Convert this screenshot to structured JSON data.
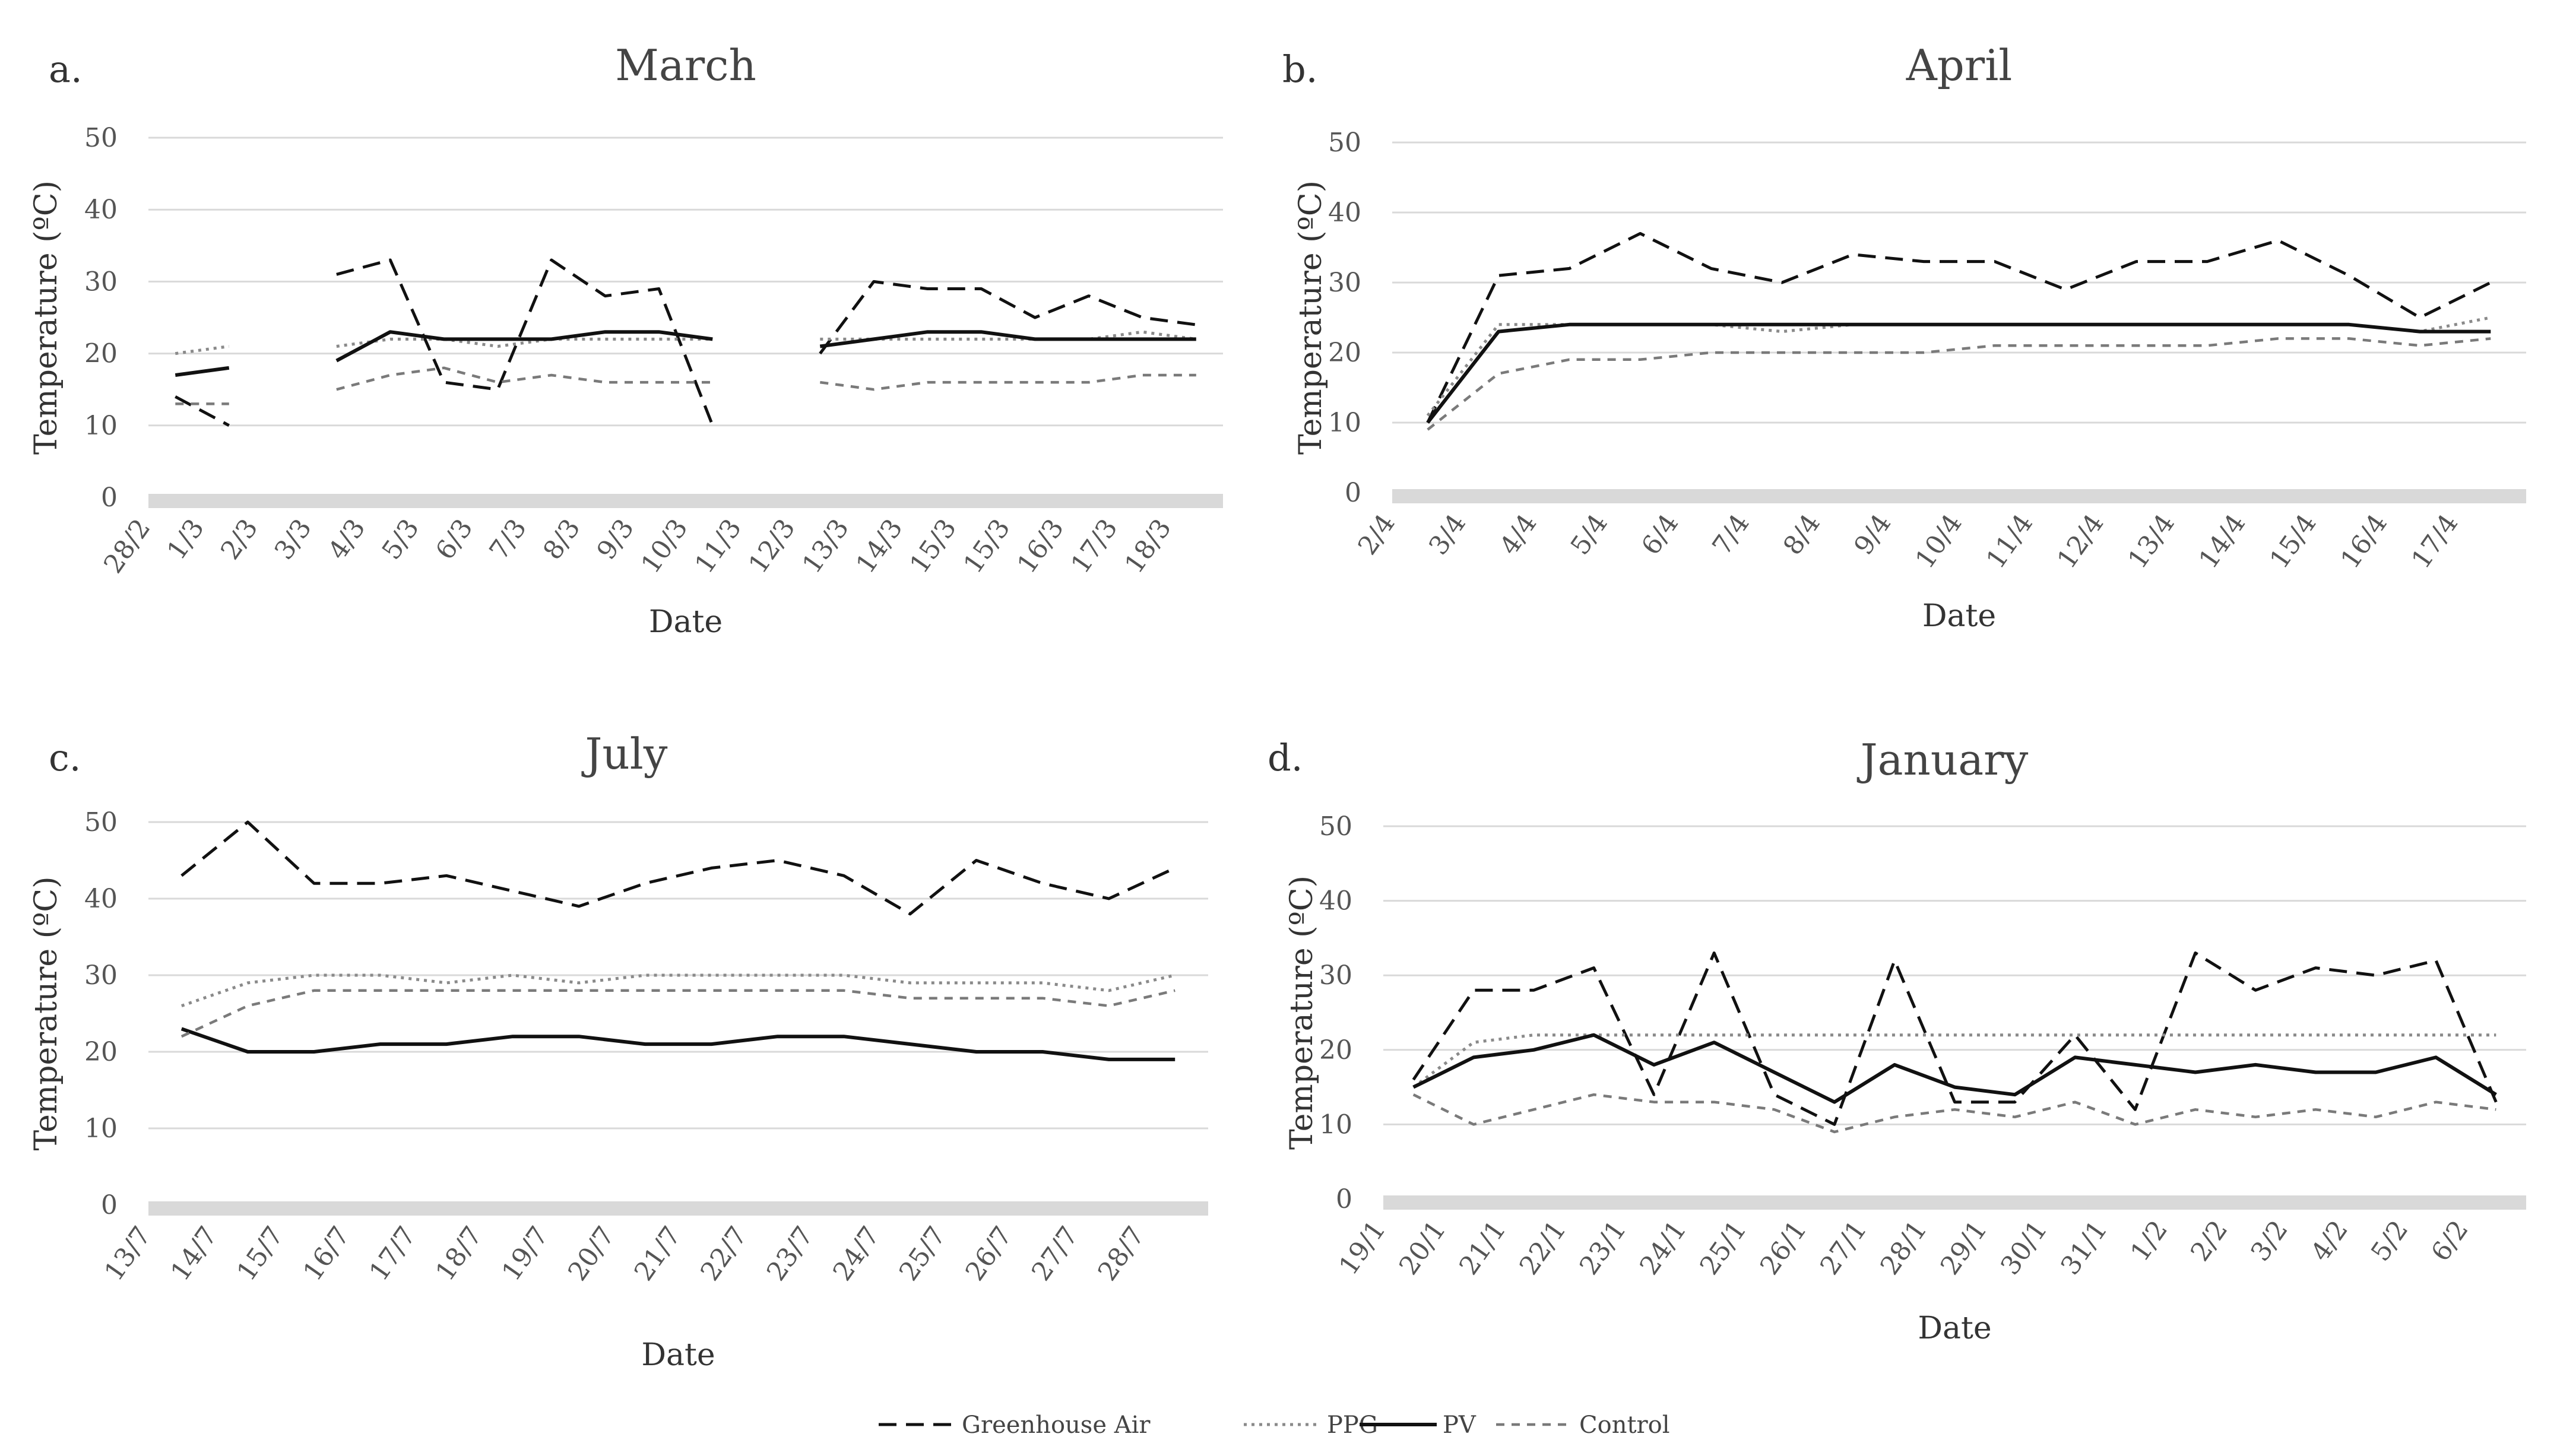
{
  "legend": [
    {
      "name": "Greenhouse Air",
      "style": "longdash"
    },
    {
      "name": "PPG",
      "style": "dotted"
    },
    {
      "name": "PV",
      "style": "solid"
    },
    {
      "name": "Control",
      "style": "shortdash"
    }
  ],
  "chart_data": [
    {
      "type": "line",
      "letter": "a.",
      "title": "March",
      "xlabel": "Date",
      "ylabel": "Temperature (ºC)",
      "ylim": [
        0,
        50
      ],
      "yticks": [
        0,
        10,
        20,
        30,
        40,
        50
      ],
      "categories": [
        "28/2",
        "1/3",
        "2/3",
        "3/3",
        "4/3",
        "5/3",
        "6/3",
        "7/3",
        "8/3",
        "9/3",
        "10/3",
        "11/3",
        "12/3",
        "13/3",
        "14/3",
        "15/3",
        "15/3",
        "16/3",
        "17/3",
        "18/3"
      ],
      "series": [
        {
          "name": "Greenhouse Air",
          "values": [
            14,
            10,
            null,
            31,
            33,
            16,
            15,
            33,
            28,
            29,
            10,
            null,
            20,
            30,
            29,
            29,
            25,
            28,
            25,
            24
          ]
        },
        {
          "name": "PPG",
          "values": [
            20,
            21,
            null,
            21,
            22,
            22,
            21,
            22,
            22,
            22,
            22,
            null,
            22,
            22,
            22,
            22,
            22,
            22,
            23,
            22
          ]
        },
        {
          "name": "PV",
          "values": [
            17,
            18,
            null,
            19,
            23,
            22,
            22,
            22,
            23,
            23,
            22,
            null,
            21,
            22,
            23,
            23,
            22,
            22,
            22,
            22
          ]
        },
        {
          "name": "Control",
          "values": [
            13,
            13,
            null,
            15,
            17,
            18,
            16,
            17,
            16,
            16,
            16,
            null,
            16,
            15,
            16,
            16,
            16,
            16,
            17,
            17
          ]
        }
      ]
    },
    {
      "type": "line",
      "letter": "b.",
      "title": "April",
      "xlabel": "Date",
      "ylabel": "Temperature (ºC)",
      "ylim": [
        0,
        50
      ],
      "yticks": [
        0,
        10,
        20,
        30,
        40,
        50
      ],
      "categories": [
        "2/4",
        "3/4",
        "4/4",
        "5/4",
        "6/4",
        "7/4",
        "8/4",
        "9/4",
        "10/4",
        "11/4",
        "12/4",
        "13/4",
        "14/4",
        "15/4",
        "16/4",
        "17/4"
      ],
      "series": [
        {
          "name": "Greenhouse Air",
          "values": [
            10,
            31,
            32,
            37,
            32,
            30,
            34,
            33,
            33,
            29,
            33,
            33,
            36,
            31,
            25,
            30
          ]
        },
        {
          "name": "PPG",
          "values": [
            11,
            24,
            24,
            24,
            24,
            23,
            24,
            24,
            24,
            24,
            24,
            24,
            24,
            24,
            23,
            25
          ]
        },
        {
          "name": "PV",
          "values": [
            10,
            23,
            24,
            24,
            24,
            24,
            24,
            24,
            24,
            24,
            24,
            24,
            24,
            24,
            23,
            23
          ]
        },
        {
          "name": "Control",
          "values": [
            9,
            17,
            19,
            19,
            20,
            20,
            20,
            20,
            21,
            21,
            21,
            21,
            22,
            22,
            21,
            22
          ]
        }
      ]
    },
    {
      "type": "line",
      "letter": "c.",
      "title": "July",
      "xlabel": "Date",
      "ylabel": "Temperature (ºC)",
      "ylim": [
        0,
        50
      ],
      "yticks": [
        0,
        10,
        20,
        30,
        40,
        50
      ],
      "categories": [
        "13/7",
        "14/7",
        "15/7",
        "16/7",
        "17/7",
        "18/7",
        "19/7",
        "20/7",
        "21/7",
        "22/7",
        "23/7",
        "24/7",
        "25/7",
        "26/7",
        "27/7",
        "28/7"
      ],
      "series": [
        {
          "name": "Greenhouse Air",
          "values": [
            43,
            50,
            42,
            42,
            43,
            41,
            39,
            42,
            44,
            45,
            43,
            38,
            45,
            42,
            40,
            44
          ]
        },
        {
          "name": "PPG",
          "values": [
            26,
            29,
            30,
            30,
            29,
            30,
            29,
            30,
            30,
            30,
            30,
            29,
            29,
            29,
            28,
            30
          ]
        },
        {
          "name": "PV",
          "values": [
            23,
            20,
            20,
            21,
            21,
            22,
            22,
            21,
            21,
            22,
            22,
            21,
            20,
            20,
            19,
            19
          ]
        },
        {
          "name": "Control",
          "values": [
            22,
            26,
            28,
            28,
            28,
            28,
            28,
            28,
            28,
            28,
            28,
            27,
            27,
            27,
            26,
            28
          ]
        }
      ]
    },
    {
      "type": "line",
      "letter": "d.",
      "title": "January",
      "xlabel": "Date",
      "ylabel": "Temperature (ºC)",
      "ylim": [
        0,
        50
      ],
      "yticks": [
        0,
        10,
        20,
        30,
        40,
        50
      ],
      "categories": [
        "19/1",
        "20/1",
        "21/1",
        "22/1",
        "23/1",
        "24/1",
        "25/1",
        "26/1",
        "27/1",
        "28/1",
        "29/1",
        "30/1",
        "31/1",
        "1/2",
        "2/2",
        "3/2",
        "4/2",
        "5/2",
        "6/2"
      ],
      "series": [
        {
          "name": "Greenhouse Air",
          "values": [
            16,
            28,
            28,
            31,
            14,
            33,
            14,
            10,
            32,
            13,
            13,
            22,
            12,
            33,
            28,
            31,
            30,
            32,
            13
          ]
        },
        {
          "name": "PPG",
          "values": [
            15,
            21,
            22,
            22,
            22,
            22,
            22,
            22,
            22,
            22,
            22,
            22,
            22,
            22,
            22,
            22,
            22,
            22,
            22
          ]
        },
        {
          "name": "PV",
          "values": [
            15,
            19,
            20,
            22,
            18,
            21,
            17,
            13,
            18,
            15,
            14,
            19,
            18,
            17,
            18,
            17,
            17,
            19,
            14
          ]
        },
        {
          "name": "Control",
          "values": [
            14,
            10,
            12,
            14,
            13,
            13,
            12,
            9,
            11,
            12,
            11,
            13,
            10,
            12,
            11,
            12,
            11,
            13,
            12
          ]
        }
      ]
    }
  ]
}
